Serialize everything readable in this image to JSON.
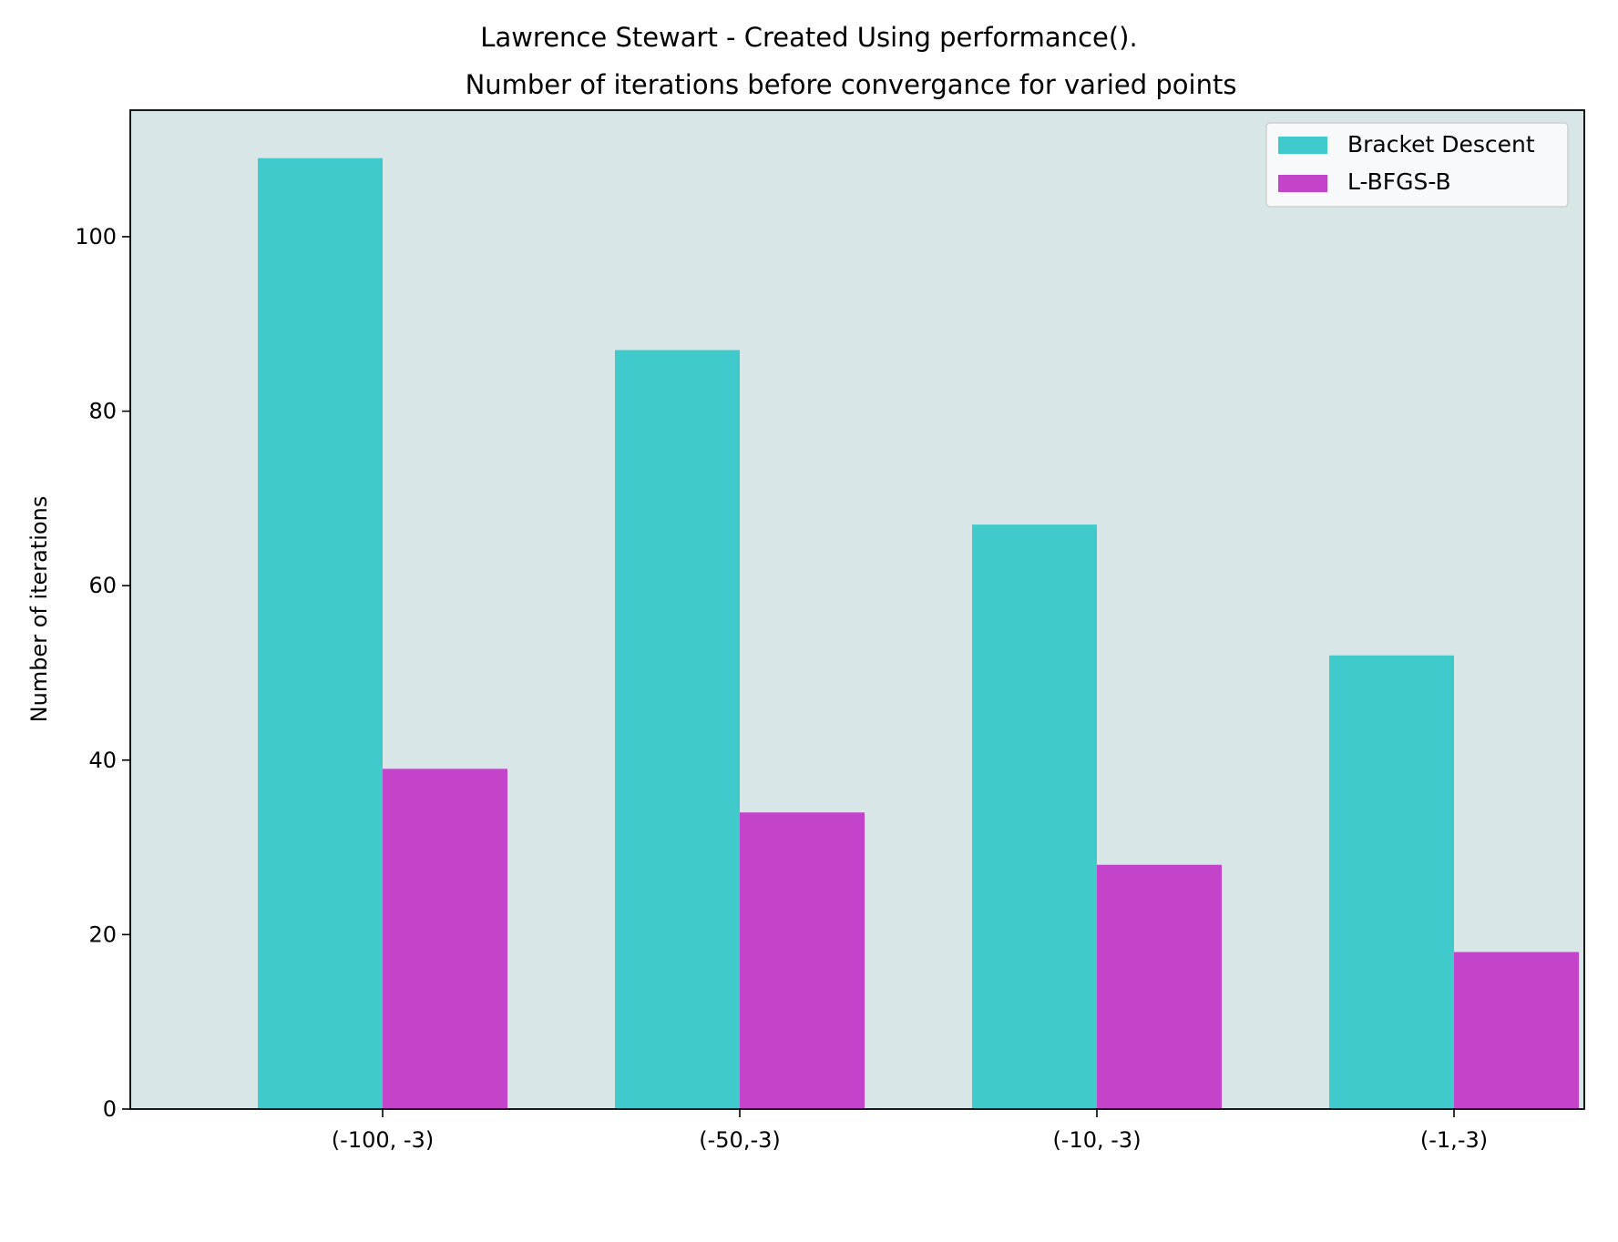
{
  "chart_data": {
    "type": "bar",
    "suptitle": "Lawrence Stewart - Created Using performance().",
    "title": "Number of iterations before convergance for varied points",
    "xlabel": "",
    "ylabel": "Number of iterations",
    "categories": [
      "(-100, -3)",
      "(-50,-3)",
      "(-10, -3)",
      "(-1,-3)"
    ],
    "series": [
      {
        "name": "Bracket Descent",
        "values": [
          109,
          87,
          67,
          52
        ],
        "color": "#41CACB"
      },
      {
        "name": "L-BFGS-B",
        "values": [
          39,
          34,
          28,
          18
        ],
        "color": "#C443CB"
      }
    ],
    "ylim": [
      0,
      114.5
    ],
    "yticks": [
      0,
      20,
      40,
      60,
      80,
      100
    ],
    "grid": false,
    "legend": "top-right",
    "plot_background": "#D9E6E7"
  }
}
